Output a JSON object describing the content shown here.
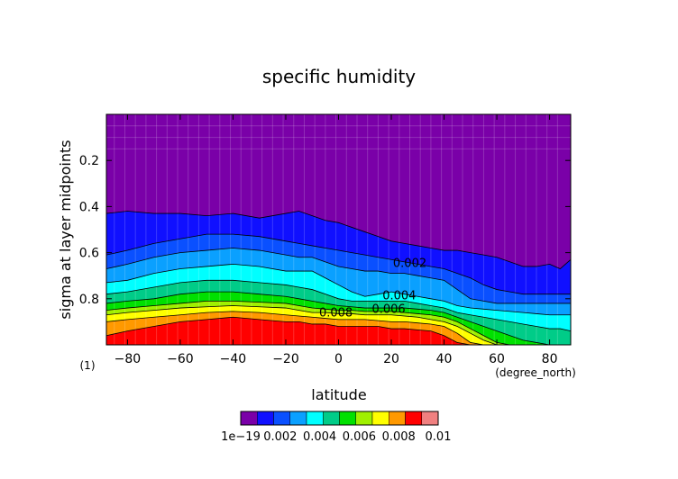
{
  "chart_data": {
    "type": "heatmap",
    "subtype": "filled-contour",
    "title": "specific humidity",
    "xlabel": "latitude",
    "ylabel": "sigma at layer midpoints",
    "x_unit": "(degree_north)",
    "y_unit": "(1)",
    "xlim": [
      -88,
      88
    ],
    "ylim": [
      1.0,
      0.0
    ],
    "y_inverted": true,
    "x_ticks": [
      -80,
      -60,
      -40,
      -20,
      0,
      20,
      40,
      60,
      80
    ],
    "x_tick_labels": [
      "−80",
      "−60",
      "−40",
      "−20",
      "0",
      "20",
      "40",
      "60",
      "80"
    ],
    "y_ticks": [
      0.2,
      0.4,
      0.6,
      0.8
    ],
    "y_tick_labels": [
      "0.2",
      "0.4",
      "0.6",
      "0.8"
    ],
    "contour_labels": [
      {
        "text": "0.002",
        "x": 27,
        "y": 0.647
      },
      {
        "text": "0.004",
        "x": 23,
        "y": 0.788
      },
      {
        "text": "0.006",
        "x": 19,
        "y": 0.845
      },
      {
        "text": "0.008",
        "x": -1,
        "y": 0.862
      }
    ],
    "latitudes": [
      -88,
      -80,
      -70,
      -60,
      -50,
      -40,
      -30,
      -20,
      -15,
      -10,
      -5,
      0,
      5,
      10,
      15,
      20,
      25,
      30,
      35,
      40,
      45,
      50,
      55,
      60,
      65,
      70,
      75,
      80,
      84,
      88
    ],
    "contours": [
      {
        "level": 0.001,
        "sigma": [
          0.43,
          0.42,
          0.43,
          0.43,
          0.44,
          0.43,
          0.45,
          0.43,
          0.42,
          0.44,
          0.46,
          0.47,
          0.49,
          0.51,
          0.53,
          0.55,
          0.56,
          0.57,
          0.58,
          0.59,
          0.59,
          0.6,
          0.61,
          0.62,
          0.64,
          0.66,
          0.66,
          0.65,
          0.67,
          0.63
        ]
      },
      {
        "level": 0.002,
        "sigma": [
          0.61,
          0.59,
          0.56,
          0.54,
          0.52,
          0.52,
          0.53,
          0.55,
          0.56,
          0.57,
          0.58,
          0.59,
          0.6,
          0.61,
          0.62,
          0.63,
          0.64,
          0.65,
          0.66,
          0.67,
          0.69,
          0.71,
          0.74,
          0.76,
          0.77,
          0.78,
          0.78,
          0.78,
          0.78,
          0.78
        ]
      },
      {
        "level": 0.003,
        "sigma": [
          0.67,
          0.65,
          0.62,
          0.6,
          0.59,
          0.58,
          0.59,
          0.61,
          0.62,
          0.62,
          0.64,
          0.66,
          0.67,
          0.68,
          0.68,
          0.69,
          0.69,
          0.7,
          0.71,
          0.72,
          0.76,
          0.8,
          0.81,
          0.82,
          0.82,
          0.82,
          0.82,
          0.82,
          0.82,
          0.82
        ]
      },
      {
        "level": 0.004,
        "sigma": [
          0.73,
          0.72,
          0.69,
          0.67,
          0.66,
          0.65,
          0.66,
          0.68,
          0.68,
          0.68,
          0.71,
          0.74,
          0.77,
          0.79,
          0.78,
          0.77,
          0.78,
          0.79,
          0.8,
          0.81,
          0.83,
          0.84,
          0.845,
          0.85,
          0.855,
          0.86,
          0.865,
          0.87,
          0.87,
          0.87
        ]
      },
      {
        "level": 0.005,
        "sigma": [
          0.78,
          0.77,
          0.75,
          0.73,
          0.72,
          0.72,
          0.73,
          0.74,
          0.75,
          0.76,
          0.78,
          0.8,
          0.81,
          0.81,
          0.81,
          0.81,
          0.81,
          0.82,
          0.83,
          0.84,
          0.86,
          0.87,
          0.88,
          0.89,
          0.9,
          0.91,
          0.92,
          0.93,
          0.93,
          0.94
        ]
      },
      {
        "level": 0.006,
        "sigma": [
          0.82,
          0.81,
          0.8,
          0.78,
          0.77,
          0.77,
          0.78,
          0.79,
          0.8,
          0.81,
          0.82,
          0.83,
          0.835,
          0.84,
          0.84,
          0.84,
          0.84,
          0.845,
          0.85,
          0.86,
          0.88,
          0.9,
          0.92,
          0.94,
          0.96,
          0.98,
          0.99,
          1.0,
          1.0,
          1.0
        ]
      },
      {
        "level": 0.007,
        "sigma": [
          0.85,
          0.84,
          0.83,
          0.82,
          0.81,
          0.81,
          0.815,
          0.82,
          0.83,
          0.84,
          0.845,
          0.85,
          0.85,
          0.855,
          0.855,
          0.855,
          0.86,
          0.865,
          0.87,
          0.88,
          0.9,
          0.93,
          0.96,
          0.99,
          1.0,
          1.0,
          1.0,
          1.0,
          1.0,
          1.0
        ]
      },
      {
        "level": 0.008,
        "sigma": [
          0.87,
          0.86,
          0.85,
          0.84,
          0.835,
          0.83,
          0.835,
          0.84,
          0.85,
          0.86,
          0.86,
          0.865,
          0.865,
          0.87,
          0.87,
          0.87,
          0.875,
          0.88,
          0.89,
          0.9,
          0.92,
          0.95,
          0.98,
          1.0,
          1.0,
          1.0,
          1.0,
          1.0,
          1.0,
          1.0
        ]
      },
      {
        "level": 0.009,
        "sigma": [
          0.9,
          0.89,
          0.88,
          0.87,
          0.86,
          0.855,
          0.86,
          0.87,
          0.875,
          0.88,
          0.885,
          0.89,
          0.89,
          0.89,
          0.895,
          0.9,
          0.9,
          0.905,
          0.91,
          0.92,
          0.95,
          0.99,
          1.0,
          1.0,
          1.0,
          1.0,
          1.0,
          1.0,
          1.0,
          1.0
        ]
      },
      {
        "level": 0.01,
        "sigma": [
          0.96,
          0.94,
          0.92,
          0.9,
          0.89,
          0.88,
          0.89,
          0.9,
          0.9,
          0.91,
          0.91,
          0.92,
          0.92,
          0.92,
          0.92,
          0.93,
          0.93,
          0.935,
          0.94,
          0.96,
          0.99,
          1.0,
          1.0,
          1.0,
          1.0,
          1.0,
          1.0,
          1.0,
          1.0,
          1.0
        ]
      }
    ],
    "colorbar": {
      "colors": [
        "#7a00a8",
        "#1010ff",
        "#0a50ff",
        "#0aa0ff",
        "#00ffff",
        "#00cc88",
        "#00e000",
        "#a0f000",
        "#ffff00",
        "#ff9900",
        "#ff0000",
        "#f08080",
        "#ffffff"
      ],
      "boundaries": [
        "1e−19",
        "0.002",
        "0.004",
        "0.006",
        "0.008",
        "0.01"
      ]
    }
  }
}
